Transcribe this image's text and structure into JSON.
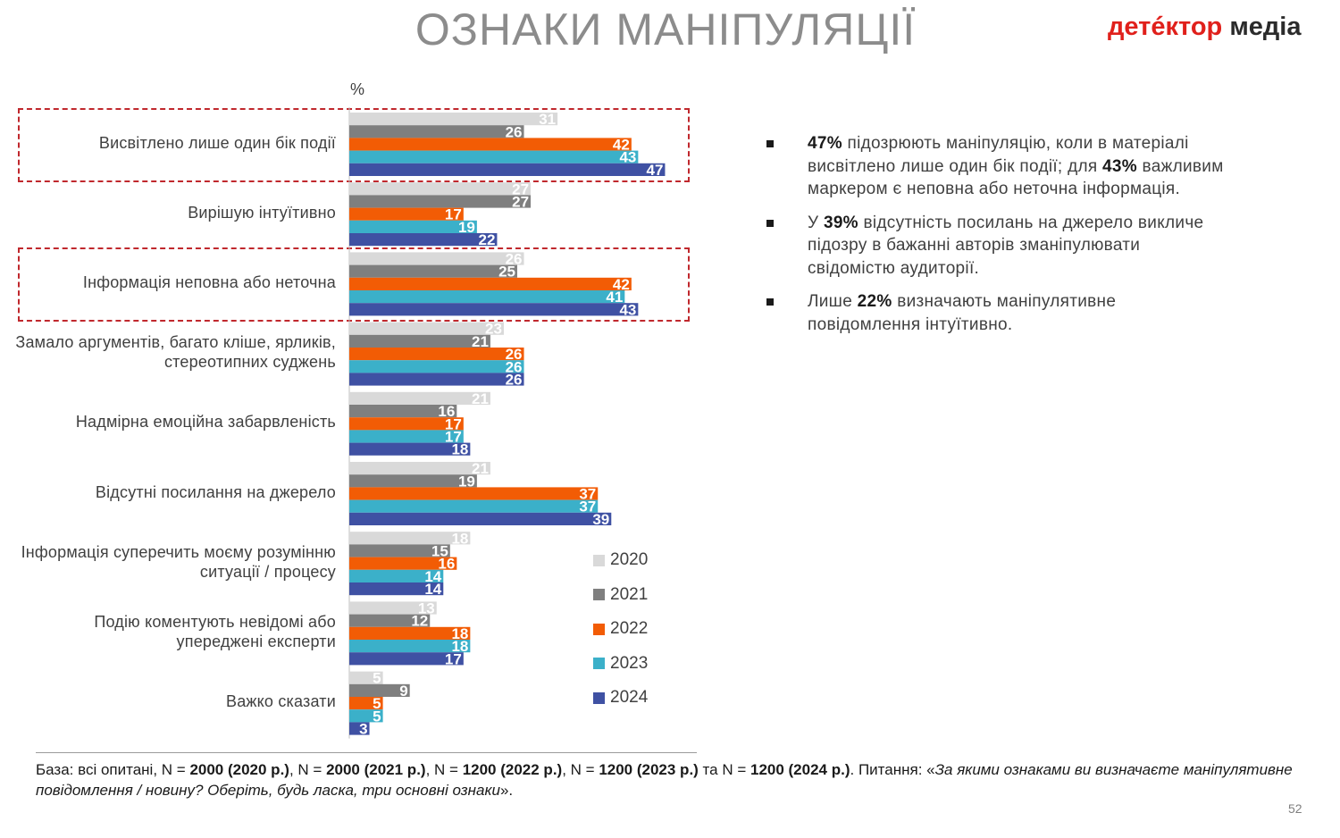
{
  "header": {
    "title": "ОЗНАКИ МАНІПУЛЯЦІЇ",
    "logo_part1": "детéктор",
    "logo_part2": "медіа"
  },
  "chart_data": {
    "type": "bar",
    "orientation": "horizontal",
    "unit_label": "%",
    "xlim": [
      0,
      50
    ],
    "categories": [
      "Висвітлено лише один бік події",
      "Вирішую інтуїтивно",
      "Інформація неповна або неточна",
      "Замало аргументів, багато кліше, ярликів, стереотипних суджень",
      "Надмірна емоційна забарвленість",
      "Відсутні посилання на джерело",
      "Інформація суперечить моєму розумінню ситуації / процесу",
      "Подію коментують невідомі або упереджені експерти",
      "Важко сказати"
    ],
    "series": [
      {
        "name": "2020",
        "color": "#d9d9d9",
        "values": [
          31,
          27,
          26,
          23,
          21,
          21,
          18,
          13,
          5
        ]
      },
      {
        "name": "2021",
        "color": "#7f7f7f",
        "values": [
          26,
          27,
          25,
          21,
          16,
          19,
          15,
          12,
          9
        ]
      },
      {
        "name": "2022",
        "color": "#f25c05",
        "values": [
          42,
          17,
          42,
          26,
          17,
          37,
          16,
          18,
          5
        ]
      },
      {
        "name": "2023",
        "color": "#3bb0c9",
        "values": [
          43,
          19,
          41,
          26,
          17,
          37,
          14,
          18,
          5
        ]
      },
      {
        "name": "2024",
        "color": "#3f51a3",
        "values": [
          47,
          22,
          43,
          26,
          18,
          39,
          14,
          17,
          3
        ]
      }
    ],
    "highlighted_categories": [
      0,
      2
    ],
    "highlight_color": "#c0282d",
    "legend_position": "bottom-right",
    "grid": false
  },
  "bullets": [
    [
      {
        "t": "47%",
        "b": true
      },
      {
        "t": " підозрюють маніпуляцію, коли в матеріалі висвітлено лише один бік події; для ",
        "b": false
      },
      {
        "t": "43%",
        "b": true
      },
      {
        "t": " важливим маркером є неповна або неточна інформація.",
        "b": false
      }
    ],
    [
      {
        "t": "У ",
        "b": false
      },
      {
        "t": "39%",
        "b": true
      },
      {
        "t": " відсутність посилань на джерело викличе підозру в бажанні авторів зманіпулювати свідомістю аудиторії.",
        "b": false
      }
    ],
    [
      {
        "t": "Лише ",
        "b": false
      },
      {
        "t": "22%",
        "b": true
      },
      {
        "t": " визначають маніпулятивне повідомлення інтуїтивно.",
        "b": false
      }
    ]
  ],
  "footnote": [
    {
      "t": "База: всі опитані, N = ",
      "s": ""
    },
    {
      "t": "2000 (2020 р.)",
      "s": "b"
    },
    {
      "t": ", N = ",
      "s": ""
    },
    {
      "t": "2000 (2021 р.)",
      "s": "b"
    },
    {
      "t": ", N = ",
      "s": ""
    },
    {
      "t": "1200 (2022 р.)",
      "s": "b"
    },
    {
      "t": ", N = ",
      "s": ""
    },
    {
      "t": "1200 (2023 р.)",
      "s": "b"
    },
    {
      "t": " та N = ",
      "s": ""
    },
    {
      "t": "1200 (2024 р.)",
      "s": "b"
    },
    {
      "t": ". Питання: «",
      "s": ""
    },
    {
      "t": "За якими ознаками ви визначаєте маніпулятивне повідомлення / новину? Оберіть, будь ласка, три основні ознаки",
      "s": "i"
    },
    {
      "t": "».",
      "s": ""
    }
  ],
  "page_number": "52"
}
